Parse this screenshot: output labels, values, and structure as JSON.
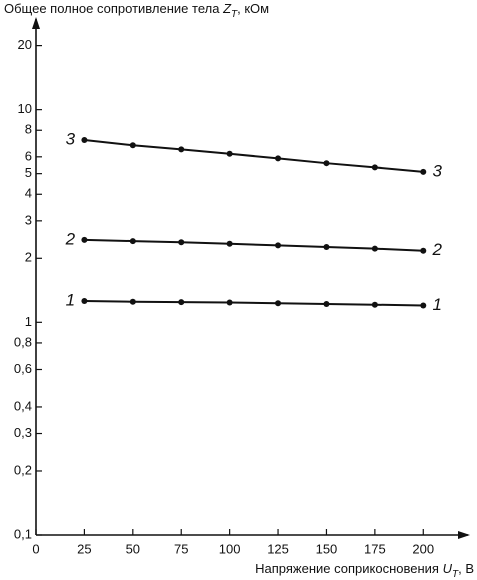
{
  "chart_data": {
    "type": "line",
    "y_label": {
      "text": "Общее полное сопротивление тела",
      "symbol": "Z",
      "subscript": "T",
      "unit": ", кОм"
    },
    "x_label": {
      "text": "Напряжение соприкосновения",
      "symbol": "U",
      "subscript": "T",
      "unit": ", В"
    },
    "x": [
      25,
      50,
      75,
      100,
      125,
      150,
      175,
      200
    ],
    "series": [
      {
        "name": "1",
        "color": "#111111",
        "values": [
          1.26,
          1.25,
          1.245,
          1.24,
          1.23,
          1.22,
          1.21,
          1.2
        ]
      },
      {
        "name": "2",
        "color": "#111111",
        "values": [
          2.44,
          2.41,
          2.38,
          2.34,
          2.3,
          2.26,
          2.22,
          2.17
        ]
      },
      {
        "name": "3",
        "color": "#111111",
        "values": [
          7.2,
          6.8,
          6.5,
          6.2,
          5.9,
          5.6,
          5.35,
          5.1
        ]
      }
    ],
    "xlim": [
      0,
      220
    ],
    "xticks": [
      0,
      25,
      50,
      75,
      100,
      125,
      150,
      175,
      200
    ],
    "ylim": [
      0.1,
      25
    ],
    "log_y": true,
    "yticks": [
      {
        "value": 0.1,
        "label": "0,1"
      },
      {
        "value": 0.2,
        "label": "0,2"
      },
      {
        "value": 0.3,
        "label": "0,3"
      },
      {
        "value": 0.4,
        "label": "0,4"
      },
      {
        "value": 0.6,
        "label": "0,6"
      },
      {
        "value": 0.8,
        "label": "0,8"
      },
      1,
      2,
      3,
      4,
      5,
      6,
      8,
      10,
      20
    ],
    "grid": false
  }
}
